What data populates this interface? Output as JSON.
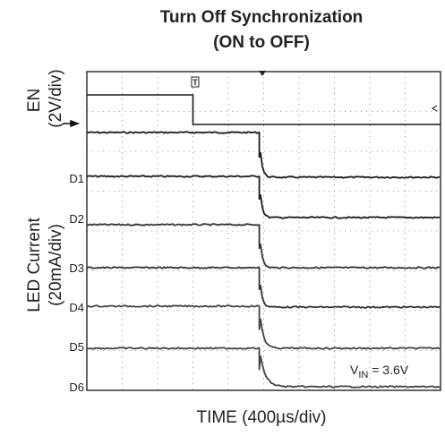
{
  "chart_data": {
    "type": "line",
    "title_line1": "Turn Off Synchronization",
    "title_line2": "(ON to OFF)",
    "xlabel": "TIME (400µs/div)",
    "ylabel_en": "EN",
    "ylabel_en_scale": "(2V/div)",
    "ylabel_led": "LED Current",
    "ylabel_led_scale": "(20mA/div)",
    "grid": "on",
    "x_unit": "µs",
    "x_per_div": 400,
    "xlim": [
      0,
      4000
    ],
    "annotation": {
      "v": "V",
      "sub": "IN",
      "value": " = 3.6V"
    },
    "en_trigger_marker": "T",
    "series": [
      {
        "name": "EN",
        "label": "",
        "color": "#1a1a1a",
        "steps": [
          [
            0,
            1.0
          ],
          [
            1200,
            0.0
          ]
        ]
      },
      {
        "name": "D1",
        "label": "D1",
        "color": "#1a1a1a",
        "tau": 25,
        "level_before": 1.0,
        "level_after": 0.0
      },
      {
        "name": "D2",
        "label": "D2",
        "color": "#1a1a1a",
        "tau": 25,
        "level_before": 1.0,
        "level_after": 0.0
      },
      {
        "name": "D3",
        "label": "D3",
        "color": "#333333",
        "tau": 25,
        "level_before": 1.0,
        "level_after": 0.0
      },
      {
        "name": "D4",
        "label": "D4",
        "color": "#333333",
        "tau": 25,
        "level_before": 1.0,
        "level_after": 0.0
      },
      {
        "name": "D5",
        "label": "D5",
        "color": "#444444",
        "tau": 40,
        "level_before": 1.0,
        "level_after": 0.0
      },
      {
        "name": "D6",
        "label": "D6",
        "color": "#444444",
        "tau": 60,
        "level_before": 1.0,
        "level_after": 0.0
      }
    ],
    "turn_off_time": 1950
  }
}
